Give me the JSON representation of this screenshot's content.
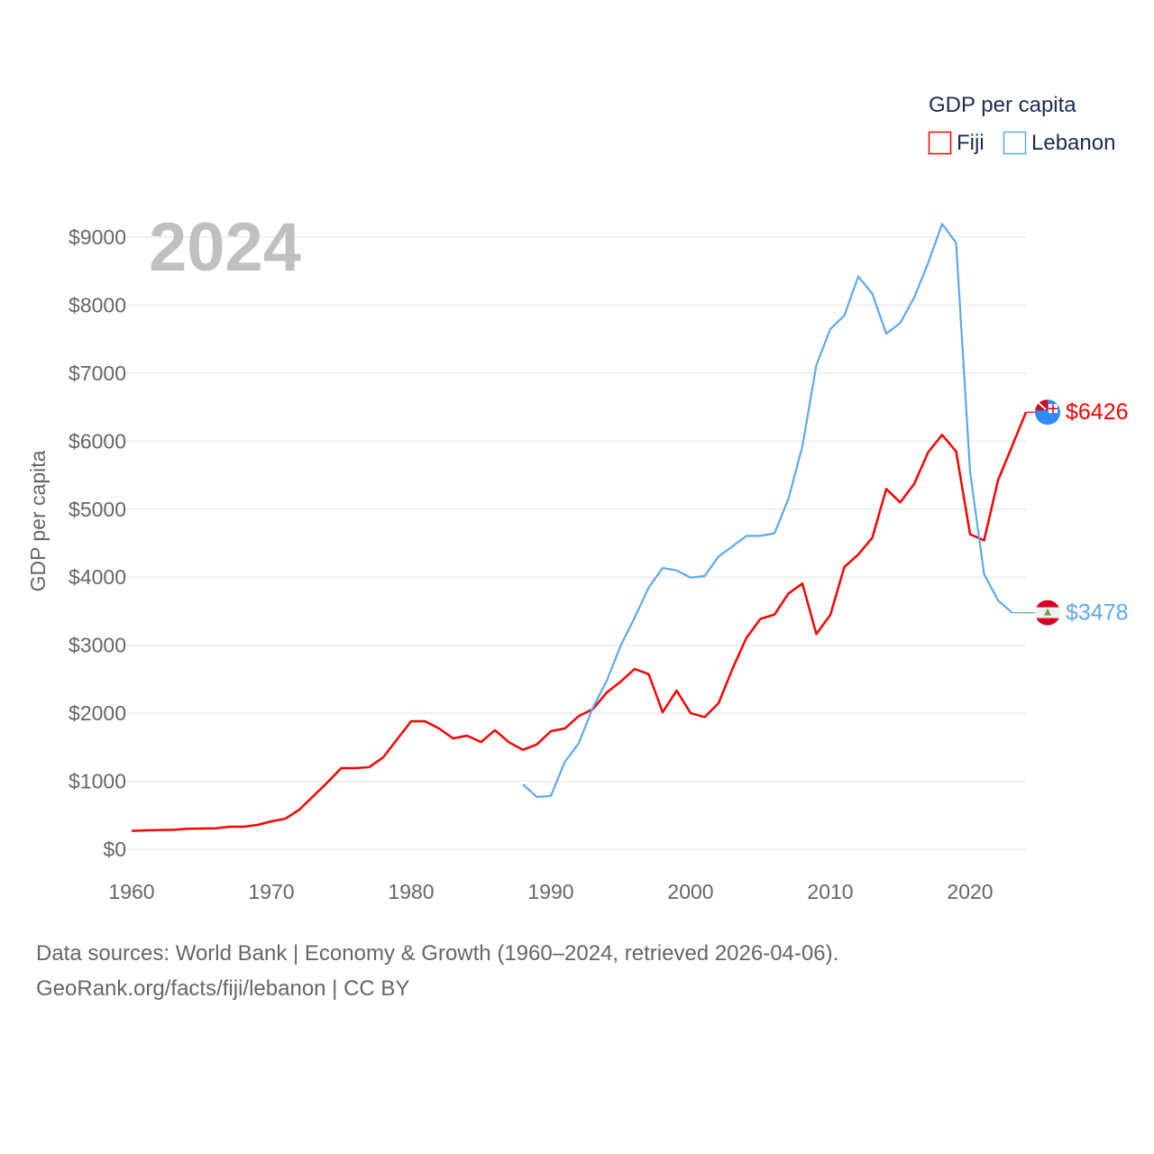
{
  "chart_data": {
    "type": "line",
    "title": "GDP per capita",
    "ylabel": "GDP per capita",
    "xlabel": "",
    "year_label": "2024",
    "xlim": [
      1960,
      2024
    ],
    "ylim": [
      0,
      9000
    ],
    "x_ticks": [
      1960,
      1970,
      1980,
      1990,
      2000,
      2010,
      2020
    ],
    "x_tick_labels": [
      "1960",
      "1970",
      "1980",
      "1990",
      "2000",
      "2010",
      "2020"
    ],
    "y_ticks": [
      0,
      1000,
      2000,
      3000,
      4000,
      5000,
      6000,
      7000,
      8000,
      9000
    ],
    "y_tick_labels": [
      "$0",
      "$1000",
      "$2000",
      "$3000",
      "$4000",
      "$5000",
      "$6000",
      "$7000",
      "$8000",
      "$9000"
    ],
    "grid": true,
    "legend_position": "top-right",
    "series": [
      {
        "name": "Fiji",
        "color": "#ff0000",
        "end_label": "$6426",
        "flag": "fiji-flag",
        "x_start": 1960,
        "values": [
          270,
          278,
          283,
          287,
          301,
          305,
          309,
          331,
          331,
          358,
          411,
          450,
          583,
          782,
          981,
          1193,
          1193,
          1207,
          1352,
          1617,
          1882,
          1882,
          1776,
          1630,
          1670,
          1577,
          1750,
          1573,
          1462,
          1542,
          1736,
          1776,
          1960,
          2059,
          2306,
          2466,
          2651,
          2576,
          2015,
          2333,
          2002,
          1944,
          2147,
          2655,
          3110,
          3388,
          3450,
          3760,
          3906,
          3164,
          3447,
          4149,
          4335,
          4578,
          5298,
          5099,
          5373,
          5837,
          6093,
          5850,
          4631,
          4542,
          5426,
          5925,
          6426
        ]
      },
      {
        "name": "Lebanon",
        "color": "#5ea8ec",
        "end_label": "$3478",
        "flag": "lebanon-flag",
        "x_start": 1988,
        "values": [
          954,
          769,
          786,
          1286,
          1560,
          2080,
          2479,
          2996,
          3407,
          3848,
          4136,
          4100,
          3994,
          4016,
          4304,
          4454,
          4608,
          4608,
          4644,
          5152,
          5925,
          7118,
          7649,
          7847,
          8421,
          8170,
          7582,
          7737,
          8113,
          8620,
          9195,
          8917,
          5550,
          4047,
          3659,
          3478
        ]
      }
    ]
  },
  "footer": {
    "line1": "Data sources: World Bank | Economy & Growth (1960–2024, retrieved 2026-04-06).",
    "line2": "GeoRank.org/facts/fiji/lebanon | CC BY"
  }
}
